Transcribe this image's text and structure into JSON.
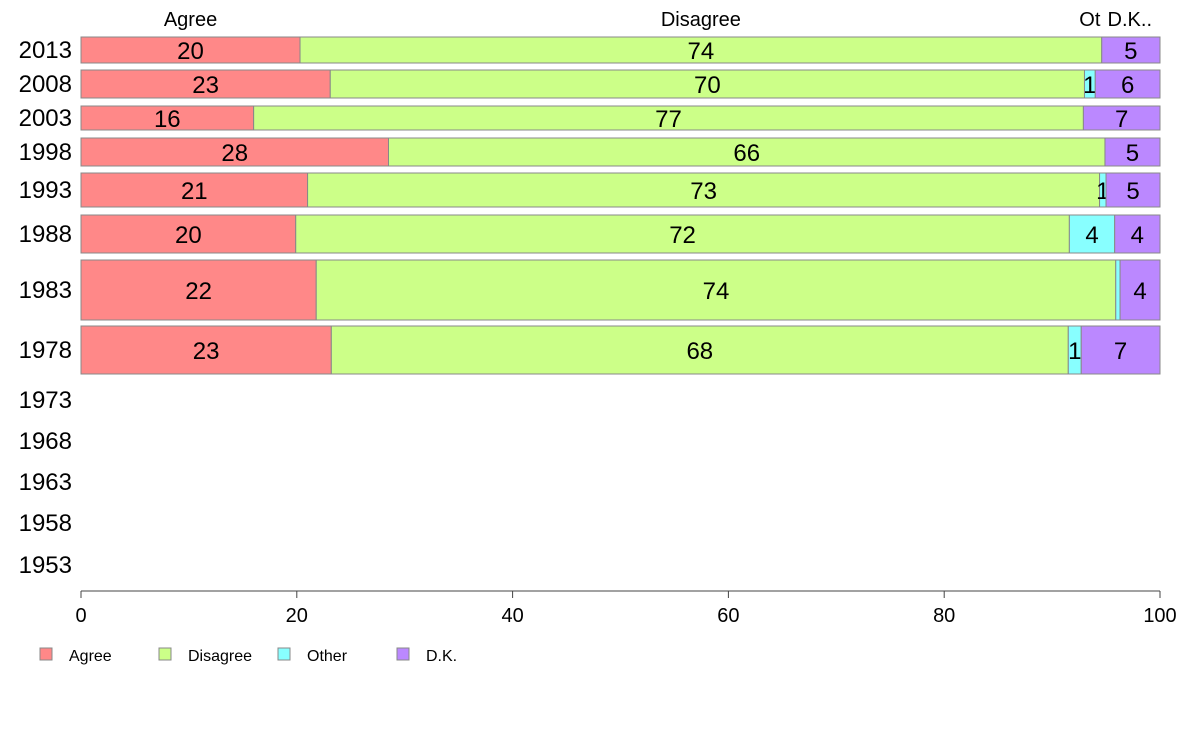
{
  "chart_data": {
    "type": "bar",
    "orientation": "horizontal",
    "stacked": true,
    "title": "",
    "xlabel": "",
    "ylabel": "",
    "xlim": [
      0,
      100
    ],
    "x_ticks": [
      "0",
      "20",
      "40",
      "60",
      "80",
      "100"
    ],
    "categories": [
      "2013",
      "2008",
      "2003",
      "1998",
      "1993",
      "1988",
      "1983",
      "1978",
      "1973",
      "1968",
      "1963",
      "1958",
      "1953"
    ],
    "column_headers": [
      "Agree",
      "Disagree",
      "Ot",
      "D.K.."
    ],
    "series": [
      {
        "name": "Agree",
        "color": "#ff8888",
        "values": [
          20.3,
          23.1,
          16.0,
          28.5,
          21.0,
          19.9,
          21.8,
          23.2,
          null,
          null,
          null,
          null,
          null
        ],
        "labels": [
          "20",
          "23",
          "16",
          "28",
          "21",
          "20",
          "22",
          "23",
          "",
          "",
          "",
          "",
          ""
        ]
      },
      {
        "name": "Disagree",
        "color": "#ccff88",
        "values": [
          74.3,
          69.9,
          76.9,
          66.4,
          73.4,
          71.7,
          74.1,
          68.3,
          null,
          null,
          null,
          null,
          null
        ],
        "labels": [
          "74",
          "70",
          "77",
          "66",
          "73",
          "72",
          "74",
          "68",
          "",
          "",
          "",
          "",
          ""
        ]
      },
      {
        "name": "Other",
        "color": "#88ffff",
        "values": [
          0.0,
          1.0,
          0.0,
          0.0,
          0.6,
          4.2,
          0.4,
          1.2,
          null,
          null,
          null,
          null,
          null
        ],
        "labels": [
          "",
          "1",
          "",
          "",
          "1",
          "4",
          "",
          "1",
          "",
          "",
          "",
          "",
          ""
        ]
      },
      {
        "name": "D.K.",
        "color": "#bb88ff",
        "values": [
          5.4,
          6.0,
          7.1,
          5.1,
          5.0,
          4.2,
          3.7,
          7.3,
          null,
          null,
          null,
          null,
          null
        ],
        "labels": [
          "5",
          "6",
          "7",
          "5",
          "5",
          "4",
          "4",
          "7",
          "",
          "",
          "",
          "",
          ""
        ]
      }
    ],
    "legend": {
      "placement": "bottom-left",
      "entries": [
        "Agree",
        "Disagree",
        "Other",
        "D.K."
      ]
    },
    "grid": false
  }
}
